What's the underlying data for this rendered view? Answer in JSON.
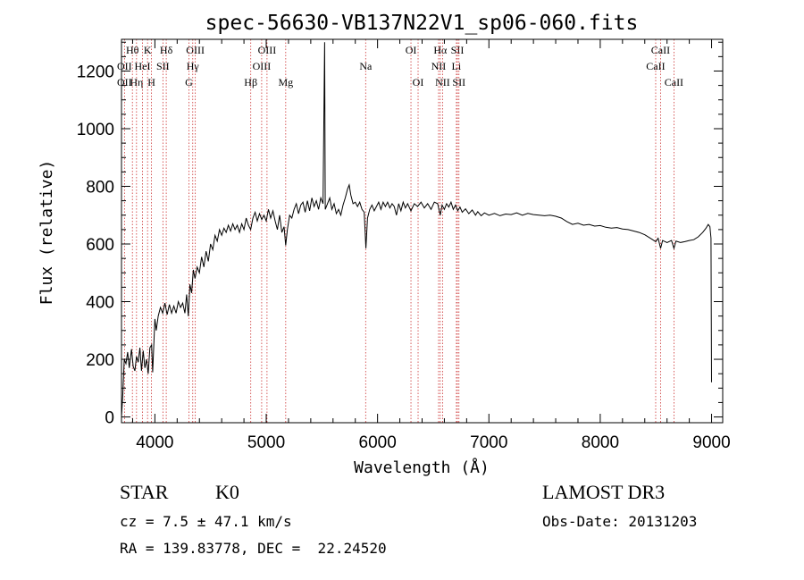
{
  "chart_data": {
    "type": "line",
    "title": "spec-56630-VB137N22V1_sp06-060.fits",
    "xlabel": "Wavelength (Å)",
    "ylabel": "Flux (relative)",
    "xlim": [
      3700,
      9100
    ],
    "ylim": [
      -20,
      1310
    ],
    "xticks": [
      4000,
      5000,
      6000,
      7000,
      8000,
      9000
    ],
    "yticks": [
      0,
      200,
      400,
      600,
      800,
      1000,
      1200
    ],
    "series": [
      {
        "name": "flux",
        "points": [
          [
            3700,
            0
          ],
          [
            3712,
            80
          ],
          [
            3725,
            200
          ],
          [
            3740,
            185
          ],
          [
            3755,
            225
          ],
          [
            3770,
            170
          ],
          [
            3790,
            235
          ],
          [
            3805,
            175
          ],
          [
            3820,
            160
          ],
          [
            3835,
            210
          ],
          [
            3850,
            190
          ],
          [
            3865,
            240
          ],
          [
            3880,
            160
          ],
          [
            3895,
            230
          ],
          [
            3910,
            170
          ],
          [
            3925,
            200
          ],
          [
            3940,
            150
          ],
          [
            3955,
            240
          ],
          [
            3970,
            250
          ],
          [
            3980,
            155
          ],
          [
            3990,
            245
          ],
          [
            4000,
            340
          ],
          [
            4012,
            300
          ],
          [
            4030,
            350
          ],
          [
            4050,
            380
          ],
          [
            4070,
            360
          ],
          [
            4090,
            395
          ],
          [
            4110,
            355
          ],
          [
            4130,
            390
          ],
          [
            4150,
            360
          ],
          [
            4170,
            385
          ],
          [
            4190,
            360
          ],
          [
            4210,
            400
          ],
          [
            4230,
            380
          ],
          [
            4250,
            395
          ],
          [
            4270,
            360
          ],
          [
            4285,
            425
          ],
          [
            4300,
            350
          ],
          [
            4315,
            460
          ],
          [
            4330,
            430
          ],
          [
            4345,
            510
          ],
          [
            4360,
            480
          ],
          [
            4380,
            520
          ],
          [
            4400,
            500
          ],
          [
            4420,
            555
          ],
          [
            4440,
            520
          ],
          [
            4460,
            575
          ],
          [
            4480,
            540
          ],
          [
            4500,
            600
          ],
          [
            4520,
            580
          ],
          [
            4540,
            630
          ],
          [
            4560,
            610
          ],
          [
            4580,
            650
          ],
          [
            4600,
            630
          ],
          [
            4620,
            655
          ],
          [
            4640,
            640
          ],
          [
            4660,
            665
          ],
          [
            4680,
            645
          ],
          [
            4700,
            670
          ],
          [
            4720,
            650
          ],
          [
            4740,
            665
          ],
          [
            4760,
            640
          ],
          [
            4780,
            670
          ],
          [
            4800,
            650
          ],
          [
            4820,
            690
          ],
          [
            4840,
            665
          ],
          [
            4860,
            650
          ],
          [
            4880,
            690
          ],
          [
            4900,
            710
          ],
          [
            4920,
            680
          ],
          [
            4940,
            705
          ],
          [
            4960,
            685
          ],
          [
            4980,
            700
          ],
          [
            5000,
            680
          ],
          [
            5020,
            720
          ],
          [
            5040,
            690
          ],
          [
            5060,
            715
          ],
          [
            5080,
            680
          ],
          [
            5100,
            650
          ],
          [
            5120,
            700
          ],
          [
            5140,
            640
          ],
          [
            5160,
            660
          ],
          [
            5175,
            595
          ],
          [
            5190,
            650
          ],
          [
            5210,
            700
          ],
          [
            5230,
            690
          ],
          [
            5250,
            720
          ],
          [
            5270,
            740
          ],
          [
            5290,
            705
          ],
          [
            5310,
            735
          ],
          [
            5330,
            745
          ],
          [
            5350,
            710
          ],
          [
            5370,
            750
          ],
          [
            5390,
            715
          ],
          [
            5410,
            760
          ],
          [
            5430,
            730
          ],
          [
            5450,
            750
          ],
          [
            5470,
            720
          ],
          [
            5490,
            760
          ],
          [
            5510,
            740
          ],
          [
            5525,
            1300
          ],
          [
            5530,
            720
          ],
          [
            5550,
            740
          ],
          [
            5570,
            760
          ],
          [
            5590,
            720
          ],
          [
            5610,
            740
          ],
          [
            5630,
            705
          ],
          [
            5650,
            720
          ],
          [
            5670,
            700
          ],
          [
            5690,
            735
          ],
          [
            5710,
            760
          ],
          [
            5730,
            790
          ],
          [
            5745,
            805
          ],
          [
            5760,
            770
          ],
          [
            5780,
            740
          ],
          [
            5800,
            745
          ],
          [
            5820,
            730
          ],
          [
            5840,
            745
          ],
          [
            5860,
            720
          ],
          [
            5880,
            710
          ],
          [
            5895,
            585
          ],
          [
            5910,
            690
          ],
          [
            5930,
            720
          ],
          [
            5950,
            735
          ],
          [
            5970,
            715
          ],
          [
            5990,
            730
          ],
          [
            6010,
            745
          ],
          [
            6030,
            720
          ],
          [
            6050,
            745
          ],
          [
            6070,
            730
          ],
          [
            6090,
            745
          ],
          [
            6110,
            725
          ],
          [
            6130,
            740
          ],
          [
            6150,
            730
          ],
          [
            6170,
            700
          ],
          [
            6190,
            740
          ],
          [
            6210,
            715
          ],
          [
            6230,
            745
          ],
          [
            6250,
            725
          ],
          [
            6270,
            740
          ],
          [
            6300,
            715
          ],
          [
            6330,
            740
          ],
          [
            6360,
            730
          ],
          [
            6390,
            745
          ],
          [
            6420,
            725
          ],
          [
            6450,
            740
          ],
          [
            6480,
            720
          ],
          [
            6510,
            745
          ],
          [
            6540,
            740
          ],
          [
            6563,
            700
          ],
          [
            6580,
            735
          ],
          [
            6600,
            720
          ],
          [
            6620,
            740
          ],
          [
            6640,
            728
          ],
          [
            6660,
            745
          ],
          [
            6680,
            720
          ],
          [
            6700,
            735
          ],
          [
            6720,
            715
          ],
          [
            6740,
            728
          ],
          [
            6760,
            710
          ],
          [
            6790,
            722
          ],
          [
            6820,
            705
          ],
          [
            6850,
            718
          ],
          [
            6880,
            700
          ],
          [
            6900,
            712
          ],
          [
            6930,
            698
          ],
          [
            6960,
            708
          ],
          [
            7000,
            700
          ],
          [
            7050,
            706
          ],
          [
            7100,
            698
          ],
          [
            7150,
            704
          ],
          [
            7200,
            702
          ],
          [
            7250,
            708
          ],
          [
            7300,
            700
          ],
          [
            7350,
            706
          ],
          [
            7400,
            702
          ],
          [
            7450,
            700
          ],
          [
            7500,
            698
          ],
          [
            7550,
            700
          ],
          [
            7600,
            696
          ],
          [
            7650,
            690
          ],
          [
            7700,
            678
          ],
          [
            7750,
            668
          ],
          [
            7800,
            672
          ],
          [
            7850,
            665
          ],
          [
            7900,
            668
          ],
          [
            7950,
            662
          ],
          [
            8000,
            664
          ],
          [
            8050,
            658
          ],
          [
            8100,
            655
          ],
          [
            8150,
            657
          ],
          [
            8200,
            652
          ],
          [
            8250,
            650
          ],
          [
            8300,
            645
          ],
          [
            8350,
            640
          ],
          [
            8400,
            632
          ],
          [
            8450,
            620
          ],
          [
            8498,
            608
          ],
          [
            8520,
            620
          ],
          [
            8542,
            585
          ],
          [
            8560,
            612
          ],
          [
            8600,
            605
          ],
          [
            8640,
            612
          ],
          [
            8662,
            585
          ],
          [
            8680,
            610
          ],
          [
            8720,
            605
          ],
          [
            8760,
            608
          ],
          [
            8800,
            612
          ],
          [
            8840,
            615
          ],
          [
            8880,
            625
          ],
          [
            8920,
            640
          ],
          [
            8950,
            655
          ],
          [
            8970,
            668
          ],
          [
            8985,
            660
          ],
          [
            8995,
            620
          ],
          [
            9000,
            120
          ]
        ]
      }
    ],
    "line_markers": [
      {
        "label": "Hθ",
        "wavelength": 3798,
        "row": 0
      },
      {
        "label": "OII",
        "wavelength": 3727,
        "row": 1
      },
      {
        "label": "OII",
        "wavelength": 3727,
        "row": 2
      },
      {
        "label": "Hη",
        "wavelength": 3835,
        "row": 2
      },
      {
        "label": "K",
        "wavelength": 3934,
        "row": 0
      },
      {
        "label": "HeI",
        "wavelength": 3889,
        "row": 1
      },
      {
        "label": "H",
        "wavelength": 3969,
        "row": 2
      },
      {
        "label": "SII",
        "wavelength": 4072,
        "row": 1
      },
      {
        "label": "Hδ",
        "wavelength": 4102,
        "row": 0
      },
      {
        "label": "OIII",
        "wavelength": 4363,
        "row": 0
      },
      {
        "label": "Hγ",
        "wavelength": 4340,
        "row": 1
      },
      {
        "label": "G",
        "wavelength": 4305,
        "row": 2
      },
      {
        "label": "Hβ",
        "wavelength": 4861,
        "row": 2
      },
      {
        "label": "OIII",
        "wavelength": 5007,
        "row": 0
      },
      {
        "label": "OIII",
        "wavelength": 4959,
        "row": 1
      },
      {
        "label": "Mg",
        "wavelength": 5175,
        "row": 2
      },
      {
        "label": "Na",
        "wavelength": 5893,
        "row": 1
      },
      {
        "label": "OI",
        "wavelength": 6300,
        "row": 0
      },
      {
        "label": "OI",
        "wavelength": 6364,
        "row": 2
      },
      {
        "label": "Hα",
        "wavelength": 6563,
        "row": 0
      },
      {
        "label": "SII",
        "wavelength": 6717,
        "row": 0
      },
      {
        "label": "NII",
        "wavelength": 6548,
        "row": 1
      },
      {
        "label": "Li",
        "wavelength": 6708,
        "row": 1
      },
      {
        "label": "NII",
        "wavelength": 6584,
        "row": 2
      },
      {
        "label": "SII",
        "wavelength": 6731,
        "row": 2
      },
      {
        "label": "CaII",
        "wavelength": 8542,
        "row": 0
      },
      {
        "label": "CaII",
        "wavelength": 8498,
        "row": 1
      },
      {
        "label": "CaII",
        "wavelength": 8662,
        "row": 2
      }
    ]
  },
  "info": {
    "class_label": "STAR",
    "subclass": "K0",
    "survey": "LAMOST DR3",
    "cz": "cz = 7.5 ± 47.1 km/s",
    "obs_date": "Obs-Date: 20131203",
    "coords": "RA = 139.83778, DEC =  22.24520"
  },
  "colors": {
    "marker_line": "#cc3333",
    "spectrum": "#000000",
    "axis": "#000000"
  }
}
